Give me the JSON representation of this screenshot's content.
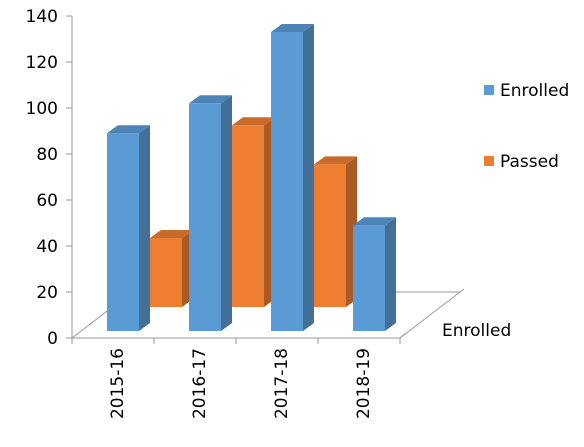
{
  "chart_data": {
    "type": "bar",
    "style": "3d-column",
    "categories": [
      "2015-16",
      "2016-17",
      "2017-18",
      "2018-19"
    ],
    "series": [
      {
        "name": "Enrolled",
        "color": "#5B9BD5",
        "values": [
          86,
          99,
          130,
          46
        ]
      },
      {
        "name": "Passed",
        "color": "#ED7D31",
        "values": [
          30,
          79,
          62,
          null
        ]
      }
    ],
    "depth_axis_label": "Enrolled",
    "ylim": [
      0,
      140
    ],
    "yticks": [
      0,
      20,
      40,
      60,
      80,
      100,
      120,
      140
    ],
    "grid": false,
    "legend_position": "right"
  }
}
